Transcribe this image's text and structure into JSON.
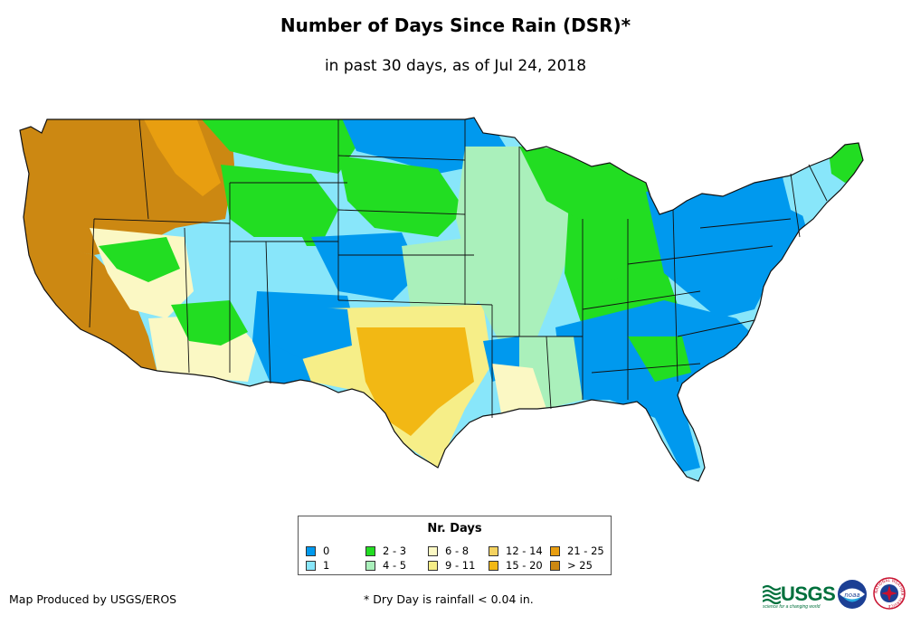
{
  "title": "Number of Days Since Rain (DSR)*",
  "subtitle": "in past 30 days, as of Jul 24, 2018",
  "legend": {
    "title": "Nr. Days",
    "items": [
      {
        "label": "0",
        "color": "#0099ee"
      },
      {
        "label": "1",
        "color": "#88e6fa"
      },
      {
        "label": "2 - 3",
        "color": "#22dd22"
      },
      {
        "label": "4 - 5",
        "color": "#aaf0bb"
      },
      {
        "label": "6 - 8",
        "color": "#fbf8c4"
      },
      {
        "label": "9 - 11",
        "color": "#f6ee88"
      },
      {
        "label": "12 - 14",
        "color": "#f4d25f"
      },
      {
        "label": "15 - 20",
        "color": "#f2b814"
      },
      {
        "label": "21 - 25",
        "color": "#e89e10"
      },
      {
        "label": "> 25",
        "color": "#cc8812"
      }
    ]
  },
  "credit": "Map Produced by USGS/EROS",
  "footnote": "* Dry Day is rainfall < 0.04 in.",
  "logos": {
    "usgs": "USGS",
    "usgs_tagline": "science for a changing world",
    "noaa": "noaa",
    "nws": "NATIONAL WEATHER SERVICE"
  }
}
